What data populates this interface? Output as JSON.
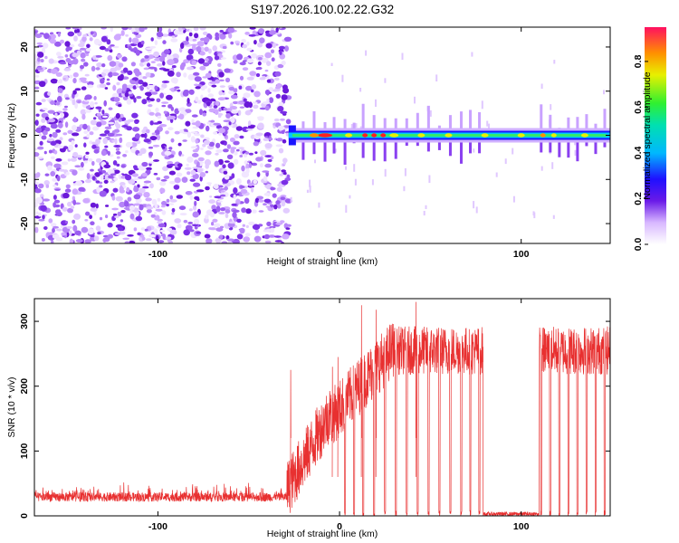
{
  "title": "S197.2026.100.02.22.G32",
  "colors": {
    "trace": "#e83030",
    "noise": "#9a50f0",
    "frame": "#000000"
  },
  "chart_data": [
    {
      "type": "heatmap",
      "xlabel": "Height of straight line (km)",
      "ylabel": "Frequency (Hz)",
      "xlim": [
        -168,
        149
      ],
      "ylim": [
        -24.5,
        24.5
      ],
      "xticks": [
        "-100",
        "0",
        "100"
      ],
      "xtick_values": [
        -100,
        0,
        100
      ],
      "yticks": [
        "-20",
        "-10",
        "0",
        "10",
        "20"
      ],
      "ytick_values": [
        -20,
        -10,
        0,
        10,
        20
      ],
      "colorbar": {
        "label": "Normalized spectral amplitude",
        "range": [
          0,
          0.95
        ],
        "ticks": [
          "0.0",
          "0.2",
          "0.4",
          "0.6",
          "0.8"
        ],
        "tick_values": [
          0.0,
          0.2,
          0.4,
          0.6,
          0.8
        ]
      },
      "noise_region_x": [
        -168,
        -28
      ],
      "signal_start_x": -28,
      "carrier_frequency_hz": 0
    },
    {
      "type": "line",
      "xlabel": "Height of straight line (km)",
      "ylabel": "SNR (10 * v/v)",
      "xlim": [
        -168,
        149
      ],
      "ylim": [
        0,
        335
      ],
      "xticks": [
        "-100",
        "0",
        "100"
      ],
      "xtick_values": [
        -100,
        0,
        100
      ],
      "yticks": [
        "0",
        "100",
        "200",
        "300"
      ],
      "ytick_values": [
        0,
        100,
        200,
        300
      ],
      "grid": false,
      "segments": [
        {
          "x_range": [
            -168,
            -29
          ],
          "snr_level": 25
        },
        {
          "x_range": [
            -25,
            -5
          ],
          "snr_level": 120
        },
        {
          "x_range": [
            0,
            30
          ],
          "snr_level": 240
        },
        {
          "x_range": [
            30,
            149
          ],
          "snr_level": 260
        }
      ],
      "dropouts_x": [
        3,
        8,
        13,
        19,
        25,
        31,
        37,
        43,
        49,
        55,
        61,
        67,
        72,
        77,
        111,
        116,
        121,
        126,
        131,
        136,
        141,
        146
      ],
      "no_signal_gaps_x": [
        [
          79,
          110
        ]
      ]
    }
  ]
}
